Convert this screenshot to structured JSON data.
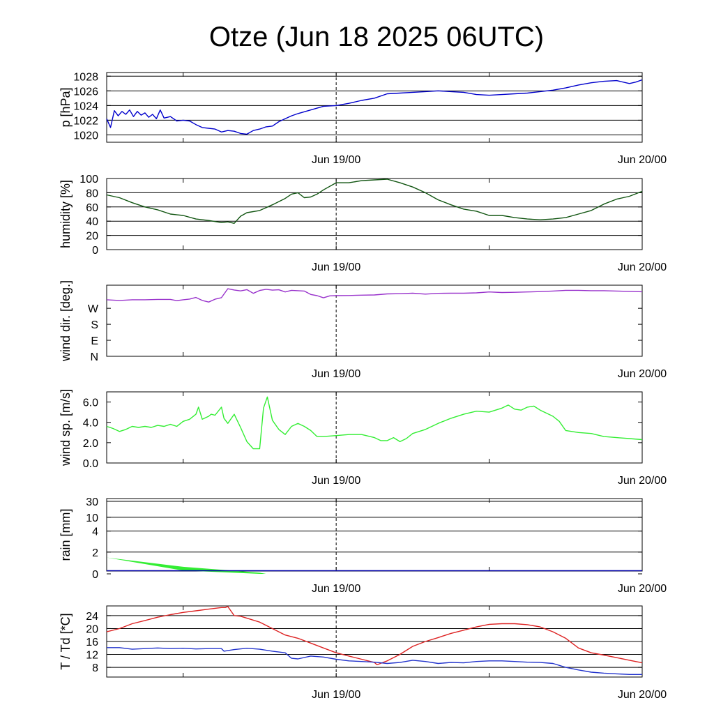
{
  "title": "Otze (Jun 18 2025 06UTC)",
  "time_axis": {
    "start_hour": 0,
    "end_hour": 42,
    "ticks": [
      {
        "hour": 6,
        "label": ""
      },
      {
        "hour": 18,
        "label": "Jun 19/00"
      },
      {
        "hour": 30,
        "label": ""
      },
      {
        "hour": 42,
        "label": "Jun 20/00"
      }
    ],
    "note_hours": "hours since Jun 18 06UTC"
  },
  "chart_data": [
    {
      "type": "line",
      "ylabel": "p [hPa]",
      "ylim": [
        1019,
        1028.5
      ],
      "yticks": [
        1020,
        1022,
        1024,
        1026,
        1028
      ],
      "ytick_labels": [
        "1020",
        "1022",
        "1024",
        "1026",
        "1028"
      ],
      "grid": true,
      "series": [
        {
          "color": "#0000cc",
          "x": [
            0,
            0.3,
            0.6,
            0.9,
            1.2,
            1.5,
            1.8,
            2.1,
            2.4,
            2.7,
            3,
            3.3,
            3.6,
            3.9,
            4.2,
            4.5,
            5,
            5.5,
            6,
            6.5,
            7,
            7.5,
            8,
            8.5,
            9,
            9.5,
            10,
            10.5,
            11,
            11.5,
            12,
            12.5,
            13,
            13.5,
            14,
            14.5,
            15,
            16,
            17,
            18,
            19,
            20,
            21,
            22,
            23,
            24,
            25,
            26,
            27,
            28,
            29,
            30,
            31,
            32,
            33,
            34,
            35,
            36,
            37,
            38,
            39,
            40,
            41,
            41.5,
            42
          ],
          "y": [
            1022.2,
            1021.0,
            1023.3,
            1022.6,
            1023.2,
            1022.8,
            1023.4,
            1022.5,
            1023.2,
            1022.7,
            1023.0,
            1022.4,
            1022.8,
            1022.2,
            1023.4,
            1022.3,
            1022.5,
            1021.9,
            1022.0,
            1021.9,
            1021.4,
            1021.0,
            1020.9,
            1020.8,
            1020.4,
            1020.6,
            1020.5,
            1020.2,
            1020.1,
            1020.6,
            1020.8,
            1021.1,
            1021.2,
            1021.8,
            1022.2,
            1022.6,
            1022.9,
            1023.4,
            1023.9,
            1024.0,
            1024.3,
            1024.7,
            1025.0,
            1025.6,
            1025.7,
            1025.8,
            1025.9,
            1026.0,
            1025.9,
            1025.8,
            1025.5,
            1025.4,
            1025.5,
            1025.6,
            1025.7,
            1025.9,
            1026.1,
            1026.4,
            1026.8,
            1027.1,
            1027.3,
            1027.4,
            1027.0,
            1027.2,
            1027.5
          ]
        }
      ]
    },
    {
      "type": "line",
      "ylabel": "humidity [%]",
      "ylim": [
        0,
        100
      ],
      "yticks": [
        0,
        20,
        40,
        60,
        80,
        100
      ],
      "ytick_labels": [
        "0",
        "20",
        "40",
        "60",
        "80",
        "100"
      ],
      "grid": true,
      "series": [
        {
          "color": "#115511",
          "x": [
            0,
            1,
            2,
            3,
            4,
            5,
            6,
            7,
            8,
            9,
            9.5,
            10,
            10.5,
            11,
            12,
            13,
            14,
            14.5,
            15,
            15.5,
            16,
            16.5,
            17,
            18,
            19,
            20,
            21,
            22,
            23,
            24,
            25,
            26,
            27,
            28,
            29,
            30,
            31,
            32,
            33,
            34,
            35,
            36,
            37,
            38,
            39,
            40,
            41,
            42
          ],
          "y": [
            77,
            73,
            66,
            60,
            56,
            50,
            48,
            43,
            41,
            38,
            39,
            37,
            47,
            52,
            55,
            63,
            72,
            78,
            80,
            73,
            74,
            78,
            84,
            94,
            94,
            97,
            98,
            99,
            94,
            88,
            80,
            70,
            63,
            57,
            54,
            48,
            48,
            45,
            43,
            42,
            43,
            45,
            50,
            55,
            64,
            71,
            75,
            82
          ]
        }
      ]
    },
    {
      "type": "line",
      "ylabel": "wind dir. [deg.]",
      "ylim": [
        0,
        400
      ],
      "yticks": [
        0,
        90,
        180,
        270
      ],
      "ytick_labels": [
        "N",
        "E",
        "S",
        "W"
      ],
      "grid": false,
      "series": [
        {
          "color": "#9933cc",
          "x": [
            0,
            1,
            2,
            3,
            4,
            5,
            5.5,
            6,
            6.5,
            7,
            7.5,
            8,
            8.5,
            9,
            9.5,
            10,
            10.5,
            11,
            11.5,
            12,
            12.5,
            13,
            13.5,
            14,
            14.5,
            15,
            15.5,
            16,
            16.5,
            17,
            17.5,
            18,
            19,
            20,
            21,
            22,
            23,
            24,
            25,
            26,
            27,
            28,
            29,
            30,
            31,
            32,
            33,
            34,
            35,
            36,
            37,
            38,
            39,
            40,
            41,
            42
          ],
          "y": [
            318,
            314,
            318,
            318,
            320,
            320,
            313,
            318,
            322,
            331,
            314,
            305,
            321,
            330,
            380,
            373,
            368,
            375,
            354,
            370,
            377,
            372,
            374,
            362,
            371,
            369,
            367,
            348,
            341,
            329,
            340,
            341,
            342,
            344,
            345,
            351,
            352,
            355,
            350,
            354,
            355,
            355,
            357,
            362,
            359,
            360,
            362,
            364,
            367,
            371,
            371,
            369,
            369,
            367,
            365,
            363
          ]
        }
      ]
    },
    {
      "type": "line",
      "ylabel": "wind sp. [m/s]",
      "ylim": [
        0,
        7
      ],
      "yticks": [
        0,
        2,
        4,
        6
      ],
      "ytick_labels": [
        "0.0",
        "2.0",
        "4.0",
        "6.0"
      ],
      "grid": false,
      "series": [
        {
          "color": "#33ee33",
          "x": [
            0,
            0.5,
            1,
            1.5,
            2,
            2.5,
            3,
            3.5,
            4,
            4.5,
            5,
            5.5,
            6,
            6.5,
            7,
            7.2,
            7.5,
            8,
            8.2,
            8.5,
            9,
            9.2,
            9.5,
            10,
            10.5,
            11,
            11.5,
            12,
            12.3,
            12.6,
            13,
            13.5,
            14,
            14.5,
            15,
            15.5,
            16,
            16.5,
            17,
            18,
            19,
            20,
            21,
            21.5,
            22,
            22.5,
            23,
            23.5,
            24,
            25,
            26,
            27,
            28,
            29,
            30,
            31,
            31.5,
            32,
            32.5,
            33,
            33.5,
            34,
            34.5,
            35,
            35.5,
            36,
            37,
            38,
            39,
            40,
            41,
            42
          ],
          "y": [
            3.6,
            3.4,
            3.1,
            3.3,
            3.6,
            3.5,
            3.6,
            3.5,
            3.7,
            3.6,
            3.8,
            3.6,
            4.1,
            4.3,
            4.8,
            5.5,
            4.3,
            4.6,
            4.8,
            4.7,
            5.5,
            4.4,
            3.9,
            4.8,
            3.5,
            2.1,
            1.4,
            1.4,
            5.4,
            6.5,
            4.2,
            3.3,
            2.8,
            3.6,
            3.9,
            3.6,
            3.2,
            2.6,
            2.6,
            2.7,
            2.8,
            2.8,
            2.5,
            2.2,
            2.2,
            2.5,
            2.1,
            2.4,
            2.9,
            3.3,
            3.9,
            4.4,
            4.8,
            5.1,
            5.0,
            5.4,
            5.7,
            5.3,
            5.2,
            5.5,
            5.6,
            5.2,
            4.9,
            4.6,
            4.1,
            3.2,
            3.0,
            2.9,
            2.6,
            2.5,
            2.4,
            2.3
          ]
        }
      ]
    },
    {
      "type": "area",
      "ylabel": "rain [mm]",
      "ylim": [
        0,
        30
      ],
      "yticks": [
        0,
        2,
        4,
        10,
        30
      ],
      "ytick_labels": [
        "0",
        "2",
        "4",
        "10",
        "30"
      ],
      "grid": true,
      "series": [
        {
          "color": "#33ee33",
          "x": [
            0,
            6,
            12,
            12.5,
            42
          ],
          "y_top": [
            1.5,
            0.65,
            0.1,
            0,
            0
          ],
          "y_bottom": [
            1.5,
            0.3,
            0,
            0,
            0
          ]
        }
      ]
    },
    {
      "type": "line",
      "ylabel": "T / Td [*C]",
      "ylim": [
        5,
        27
      ],
      "yticks": [
        8,
        12,
        16,
        20,
        24
      ],
      "ytick_labels": [
        "8",
        "12",
        "16",
        "20",
        "24"
      ],
      "grid": true,
      "series": [
        {
          "color": "#dd2222",
          "x": [
            0,
            1,
            2,
            3,
            4,
            5,
            6,
            7,
            8,
            9,
            9.3,
            9.5,
            10,
            10.5,
            11,
            12,
            13,
            14,
            15,
            16,
            17,
            18,
            19,
            20,
            21,
            21.2,
            22,
            23,
            24,
            25,
            26,
            27,
            28,
            29,
            30,
            31,
            32,
            33,
            34,
            35,
            36,
            37,
            38,
            39,
            40,
            41,
            42
          ],
          "y": [
            19.0,
            20.0,
            21.5,
            22.5,
            23.5,
            24.3,
            25.0,
            25.5,
            26.0,
            26.5,
            26.5,
            26.8,
            24.0,
            23.8,
            23.2,
            22.0,
            20.0,
            18.0,
            17.0,
            15.5,
            14.0,
            12.5,
            11.5,
            10.5,
            9.5,
            8.8,
            10.0,
            12.0,
            14.5,
            16.0,
            17.2,
            18.5,
            19.5,
            20.5,
            21.3,
            21.5,
            21.5,
            21.2,
            20.5,
            19.0,
            17.0,
            14.0,
            12.5,
            11.8,
            11.0,
            10.2,
            9.4
          ]
        },
        {
          "color": "#2233cc",
          "x": [
            0,
            1,
            2,
            3,
            4,
            5,
            6,
            7,
            8,
            9,
            9.2,
            10,
            11,
            12,
            13,
            14,
            14.5,
            15,
            16,
            17,
            18,
            19,
            20,
            21,
            22,
            23,
            24,
            25,
            26,
            27,
            28,
            29,
            30,
            31,
            32,
            33,
            34,
            35,
            36,
            37,
            38,
            39,
            40,
            41,
            42
          ],
          "y": [
            14.1,
            14.1,
            13.6,
            13.8,
            14.0,
            13.8,
            13.9,
            13.7,
            13.8,
            13.8,
            13.0,
            13.5,
            13.9,
            13.6,
            13.0,
            12.5,
            10.8,
            10.6,
            11.5,
            11.2,
            10.5,
            10.0,
            9.8,
            9.6,
            9.2,
            9.5,
            10.2,
            9.8,
            9.2,
            9.5,
            9.4,
            9.8,
            10.0,
            10.0,
            9.8,
            9.6,
            9.5,
            9.2,
            8.0,
            7.2,
            6.5,
            6.2,
            6.0,
            5.8,
            5.8
          ]
        }
      ]
    }
  ]
}
